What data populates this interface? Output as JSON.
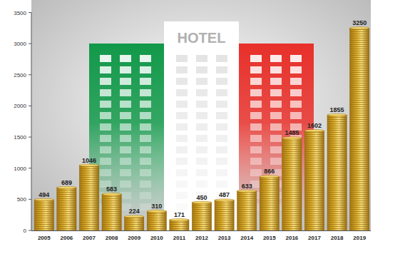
{
  "chart_data": {
    "type": "bar",
    "annotations": [
      "HOTEL"
    ],
    "categories": [
      "2005",
      "2006",
      "2007",
      "2008",
      "2009",
      "2010",
      "2011",
      "2012",
      "2013",
      "2014",
      "2015",
      "2016",
      "2017",
      "2018",
      "2019"
    ],
    "values": [
      494,
      689,
      1046,
      583,
      224,
      310,
      171,
      450,
      487,
      633,
      866,
      1485,
      1602,
      1855,
      3250
    ],
    "color": "#d9ab2b",
    "ylim": [
      0,
      3500
    ],
    "yticks": [
      0,
      500,
      1000,
      1500,
      2000,
      2500,
      3000,
      3500
    ],
    "grid": false,
    "data_labels": true
  }
}
